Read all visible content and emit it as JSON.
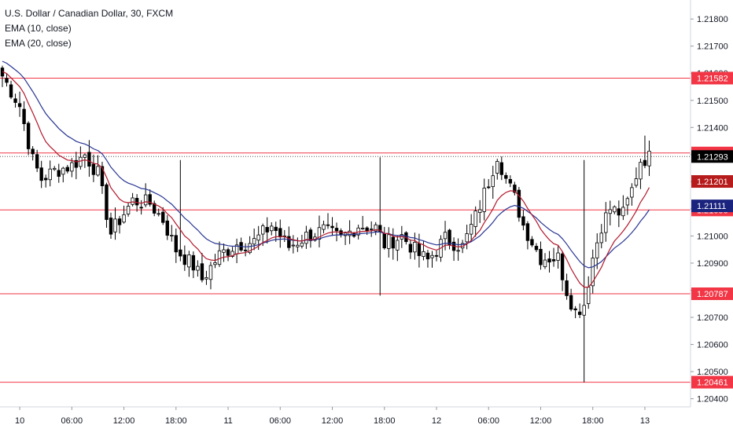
{
  "legend": {
    "symbol": "U.S. Dollar / Canadian Dollar, 30, FXCM",
    "ema10": "EMA (10, close)",
    "ema20": "EMA (20, close)"
  },
  "colors": {
    "background": "#ffffff",
    "candle": "#000000",
    "ema10": "#b2182b",
    "ema20": "#283593",
    "level_line": "#f23645",
    "badge_level": "#f23645",
    "badge_ema10": "#b71c1c",
    "badge_ema20": "#1a237e",
    "badge_last": "#000000",
    "grid": "#e6e6e6"
  },
  "chart_data": {
    "type": "candlestick",
    "title": "U.S. Dollar / Canadian Dollar, 30, FXCM",
    "grid": false,
    "ylim": [
      1.2037,
      1.2187
    ],
    "y_ticks": [
      "1.21800",
      "1.21700",
      "1.21600",
      "1.21500",
      "1.21400",
      "1.21300",
      "1.21200",
      "1.21100",
      "1.21000",
      "1.20900",
      "1.20800",
      "1.20700",
      "1.20600",
      "1.20500",
      "1.20400"
    ],
    "x_ticks": [
      {
        "label": "10",
        "t": 4
      },
      {
        "label": "06:00",
        "t": 16
      },
      {
        "label": "12:00",
        "t": 28
      },
      {
        "label": "18:00",
        "t": 40
      },
      {
        "label": "11",
        "t": 52
      },
      {
        "label": "06:00",
        "t": 64
      },
      {
        "label": "12:00",
        "t": 76
      },
      {
        "label": "18:00",
        "t": 88
      },
      {
        "label": "12",
        "t": 100
      },
      {
        "label": "06:00",
        "t": 112
      },
      {
        "label": "12:00",
        "t": 124
      },
      {
        "label": "18:00",
        "t": 136
      },
      {
        "label": "13",
        "t": 148
      }
    ],
    "bar_count": 150,
    "horizontal_levels": [
      "1.21582",
      "1.21306",
      "1.21096",
      "1.20787",
      "1.20461"
    ],
    "ema_badges": [
      {
        "label": "1.21201",
        "series": "ema10"
      },
      {
        "label": "1.21111",
        "series": "ema20"
      }
    ],
    "last_price": "1.21293",
    "anchors": [
      [
        0,
        1.2159
      ],
      [
        4,
        1.2148
      ],
      [
        7,
        1.2128
      ],
      [
        9,
        1.2121
      ],
      [
        12,
        1.2124
      ],
      [
        16,
        1.2126
      ],
      [
        19,
        1.213
      ],
      [
        22,
        1.2123
      ],
      [
        25,
        1.2101
      ],
      [
        27,
        1.2106
      ],
      [
        30,
        1.2113
      ],
      [
        34,
        1.2112
      ],
      [
        37,
        1.2106
      ],
      [
        40,
        1.2095
      ],
      [
        44,
        1.2089
      ],
      [
        46,
        1.2084
      ],
      [
        50,
        1.2093
      ],
      [
        54,
        1.2097
      ],
      [
        58,
        1.2098
      ],
      [
        62,
        1.2104
      ],
      [
        66,
        1.2096
      ],
      [
        70,
        1.21
      ],
      [
        74,
        1.2102
      ],
      [
        78,
        1.2099
      ],
      [
        82,
        1.2104
      ],
      [
        86,
        1.2103
      ],
      [
        88,
        1.2097
      ],
      [
        92,
        1.21
      ],
      [
        96,
        1.2093
      ],
      [
        98,
        1.2091
      ],
      [
        102,
        1.2099
      ],
      [
        106,
        1.2096
      ],
      [
        109,
        1.2107
      ],
      [
        112,
        1.212
      ],
      [
        114,
        1.213
      ],
      [
        116,
        1.2121
      ],
      [
        118,
        1.2114
      ],
      [
        120,
        1.2104
      ],
      [
        124,
        1.2092
      ],
      [
        128,
        1.2092
      ],
      [
        130,
        1.208
      ],
      [
        132,
        1.2072
      ],
      [
        134,
        1.2075
      ],
      [
        136,
        1.2092
      ],
      [
        138,
        1.2104
      ],
      [
        140,
        1.211
      ],
      [
        143,
        1.2108
      ],
      [
        145,
        1.2117
      ],
      [
        147,
        1.2128
      ],
      [
        149,
        1.2129
      ]
    ]
  }
}
